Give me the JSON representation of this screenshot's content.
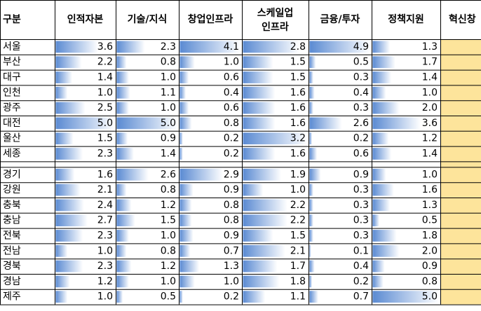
{
  "table": {
    "header": [
      "구분",
      "인적자본",
      "기술/지식",
      "창업인프라",
      [
        "스케일업",
        "인프라"
      ],
      "금융/투자",
      "정책지원",
      "혁신창"
    ],
    "rows": [
      [
        "서울",
        "3.6",
        "2.3",
        "4.1",
        "2.8",
        "4.9",
        "1.3"
      ],
      [
        "부산",
        "2.2",
        "0.8",
        "1.0",
        "1.5",
        "0.5",
        "1.7"
      ],
      [
        "대구",
        "1.4",
        "1.0",
        "0.6",
        "1.5",
        "0.3",
        "1.4"
      ],
      [
        "인천",
        "1.0",
        "1.1",
        "0.4",
        "1.6",
        "0.4",
        "1.0"
      ],
      [
        "광주",
        "2.5",
        "1.0",
        "0.6",
        "1.6",
        "0.3",
        "2.0"
      ],
      [
        "대전",
        "5.0",
        "5.0",
        "0.8",
        "1.6",
        "2.6",
        "3.6"
      ],
      [
        "울산",
        "1.5",
        "0.9",
        "0.2",
        "3.2",
        "0.2",
        "1.2"
      ],
      [
        "세종",
        "2.3",
        "1.4",
        "0.2",
        "1.6",
        "0.6",
        "1.4"
      ],
      [
        "경기",
        "1.6",
        "2.6",
        "2.9",
        "1.9",
        "0.9",
        "1.0"
      ],
      [
        "강원",
        "2.1",
        "0.8",
        "0.9",
        "1.0",
        "0.3",
        "1.6"
      ],
      [
        "충북",
        "2.4",
        "1.2",
        "0.8",
        "2.2",
        "0.3",
        "1.3"
      ],
      [
        "충남",
        "2.7",
        "1.5",
        "0.8",
        "2.2",
        "0.3",
        "0.5"
      ],
      [
        "전북",
        "2.3",
        "1.0",
        "0.9",
        "1.5",
        "0.3",
        "1.8"
      ],
      [
        "전남",
        "1.0",
        "0.8",
        "0.7",
        "2.1",
        "0.1",
        "2.0"
      ],
      [
        "경북",
        "2.3",
        "1.2",
        "1.3",
        "1.7",
        "0.4",
        "0.9"
      ],
      [
        "경남",
        "1.2",
        "1.0",
        "1.0",
        "1.8",
        "0.2",
        "0.8"
      ],
      [
        "제주",
        "1.0",
        "0.5",
        "0.2",
        "1.1",
        "0.7",
        "5.0"
      ]
    ]
  }
}
